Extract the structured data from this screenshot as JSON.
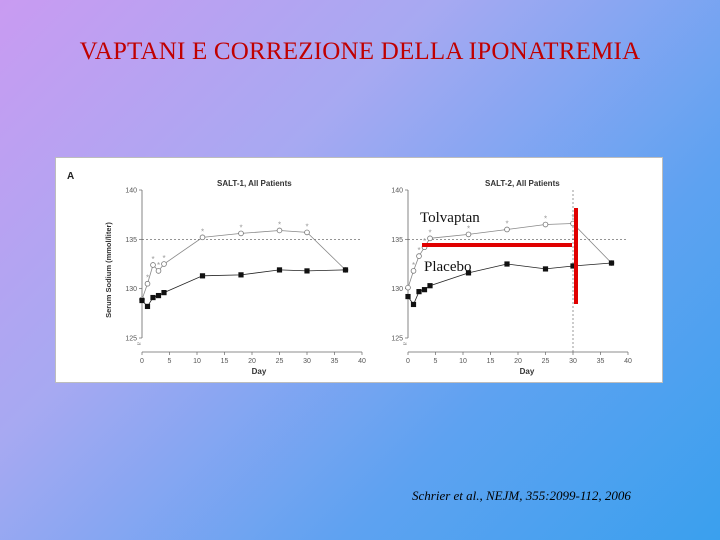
{
  "slide": {
    "title": "VAPTANI E CORREZIONE DELLA IPONATREMIA",
    "citation": "Schrier et al., NEJM, 355:2099-112, 2006"
  },
  "figure": {
    "panel_letter": "A",
    "annotations": {
      "tolvaptan": "Tolvaptan",
      "placebo": "Placebo"
    }
  },
  "colors": {
    "title": "#c00000",
    "annotation_bar": "#e00000"
  },
  "chart_data": [
    {
      "type": "line",
      "title": "SALT-1, All Patients",
      "xlabel": "Day",
      "ylabel": "Serum Sodium (mmol/liter)",
      "xlim": [
        0,
        40
      ],
      "ylim": [
        125,
        140
      ],
      "xticks": [
        0,
        5,
        10,
        15,
        20,
        25,
        30,
        35,
        40
      ],
      "yticks": [
        125,
        130,
        135,
        140
      ],
      "reference_line_y": 135,
      "series": [
        {
          "marker": "open-circle",
          "x": [
            0,
            1,
            2,
            3,
            4,
            11,
            18,
            25,
            30,
            37
          ],
          "y": [
            128.9,
            130.5,
            132.4,
            131.8,
            132.5,
            135.2,
            135.6,
            135.9,
            135.7,
            131.9
          ],
          "significance_markers_at_x": [
            1,
            2,
            3,
            4,
            11,
            18,
            25,
            30
          ]
        },
        {
          "marker": "filled-square",
          "x": [
            0,
            1,
            2,
            3,
            4,
            11,
            18,
            25,
            30,
            37
          ],
          "y": [
            128.8,
            128.2,
            129.1,
            129.3,
            129.6,
            131.3,
            131.4,
            131.9,
            131.8,
            131.9
          ]
        }
      ]
    },
    {
      "type": "line",
      "title": "SALT-2, All Patients",
      "xlabel": "Day",
      "xlim": [
        0,
        40
      ],
      "ylim": [
        125,
        140
      ],
      "xticks": [
        0,
        5,
        10,
        15,
        20,
        25,
        30,
        35,
        40
      ],
      "yticks": [
        125,
        130,
        135,
        140
      ],
      "reference_line_y": 135,
      "vertical_line_x": 30,
      "series": [
        {
          "marker": "open-circle",
          "x": [
            0,
            1,
            2,
            3,
            4,
            11,
            18,
            25,
            30,
            37
          ],
          "y": [
            130.1,
            131.8,
            133.3,
            134.2,
            135.1,
            135.5,
            136.0,
            136.5,
            136.6,
            132.6
          ],
          "significance_markers_at_x": [
            1,
            2,
            3,
            4,
            11,
            18,
            25,
            30
          ]
        },
        {
          "marker": "filled-square",
          "x": [
            0,
            1,
            2,
            3,
            4,
            11,
            18,
            25,
            30,
            37
          ],
          "y": [
            129.2,
            128.4,
            129.7,
            129.9,
            130.3,
            131.6,
            132.5,
            132.0,
            132.3,
            132.6
          ]
        }
      ]
    }
  ]
}
